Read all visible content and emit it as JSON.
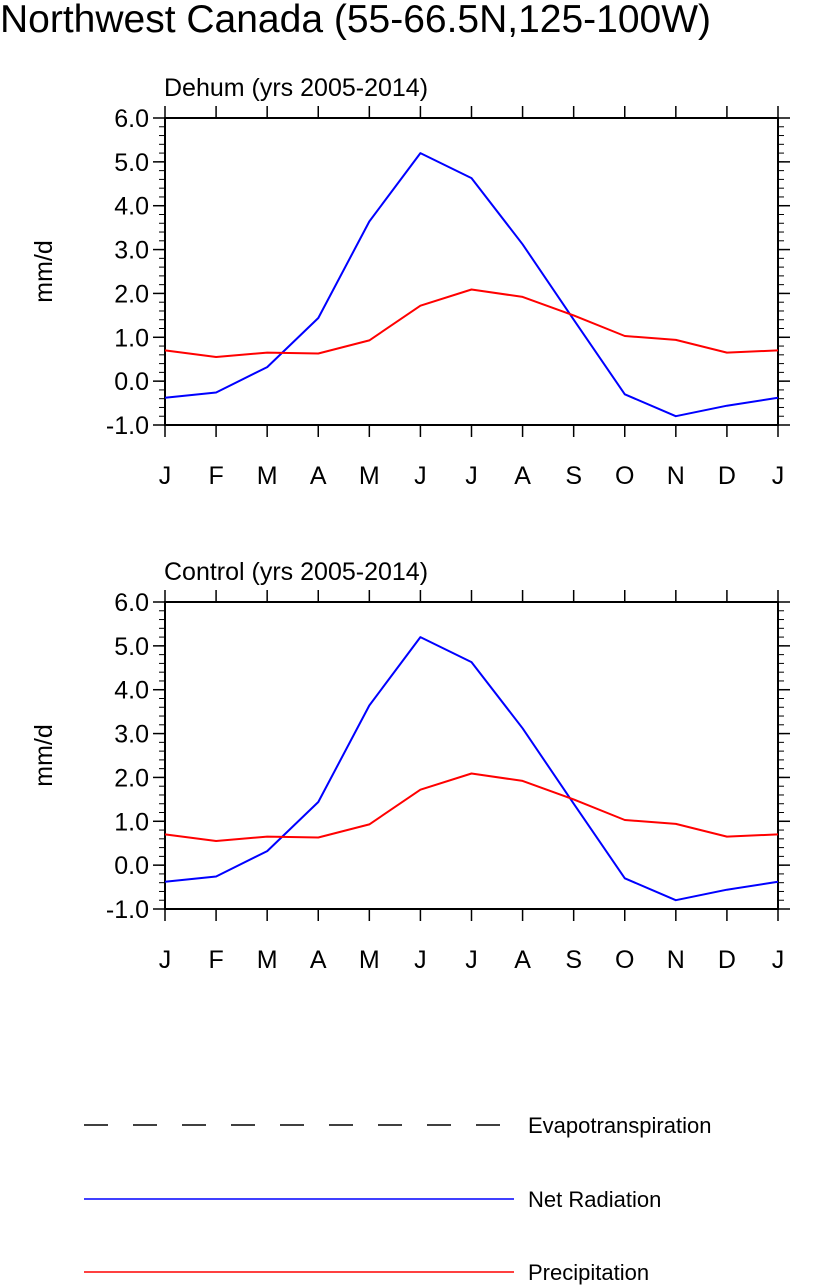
{
  "title": "Northwest Canada (55-66.5N,125-100W)",
  "colors": {
    "net_radiation": "#0000ff",
    "precipitation": "#ff0000",
    "evapotranspiration": "#000000",
    "axis": "#000000"
  },
  "legend": [
    {
      "label": "Evapotranspiration",
      "style": "dashed",
      "color": "#000000"
    },
    {
      "label": "Net Radiation",
      "style": "solid",
      "color": "#0000ff"
    },
    {
      "label": "Precipitation",
      "style": "solid",
      "color": "#ff0000"
    }
  ],
  "chart_data": [
    {
      "type": "line",
      "title": "Dehum (yrs 2005-2014)",
      "xlabel": "",
      "ylabel": "mm/d",
      "categories": [
        "J",
        "F",
        "M",
        "A",
        "M",
        "J",
        "J",
        "A",
        "S",
        "O",
        "N",
        "D",
        "J"
      ],
      "ylim": [
        -1.0,
        6.0
      ],
      "yticks": [
        "6.0",
        "5.0",
        "4.0",
        "3.0",
        "2.0",
        "1.0",
        "0.0",
        "-1.0"
      ],
      "series": [
        {
          "name": "Net Radiation",
          "values": [
            -0.38,
            -0.26,
            0.32,
            1.44,
            3.64,
            5.2,
            4.63,
            3.12,
            1.4,
            -0.3,
            -0.8,
            -0.56,
            -0.38
          ]
        },
        {
          "name": "Precipitation",
          "values": [
            0.7,
            0.55,
            0.65,
            0.63,
            0.93,
            1.72,
            2.09,
            1.92,
            1.5,
            1.03,
            0.94,
            0.65,
            0.7
          ]
        }
      ]
    },
    {
      "type": "line",
      "title": "Control (yrs 2005-2014)",
      "xlabel": "",
      "ylabel": "mm/d",
      "categories": [
        "J",
        "F",
        "M",
        "A",
        "M",
        "J",
        "J",
        "A",
        "S",
        "O",
        "N",
        "D",
        "J"
      ],
      "ylim": [
        -1.0,
        6.0
      ],
      "yticks": [
        "6.0",
        "5.0",
        "4.0",
        "3.0",
        "2.0",
        "1.0",
        "0.0",
        "-1.0"
      ],
      "series": [
        {
          "name": "Net Radiation",
          "values": [
            -0.38,
            -0.26,
            0.32,
            1.44,
            3.64,
            5.2,
            4.63,
            3.12,
            1.4,
            -0.3,
            -0.8,
            -0.56,
            -0.38
          ]
        },
        {
          "name": "Precipitation",
          "values": [
            0.7,
            0.55,
            0.65,
            0.63,
            0.93,
            1.72,
            2.09,
            1.92,
            1.5,
            1.03,
            0.94,
            0.65,
            0.7
          ]
        }
      ]
    }
  ]
}
